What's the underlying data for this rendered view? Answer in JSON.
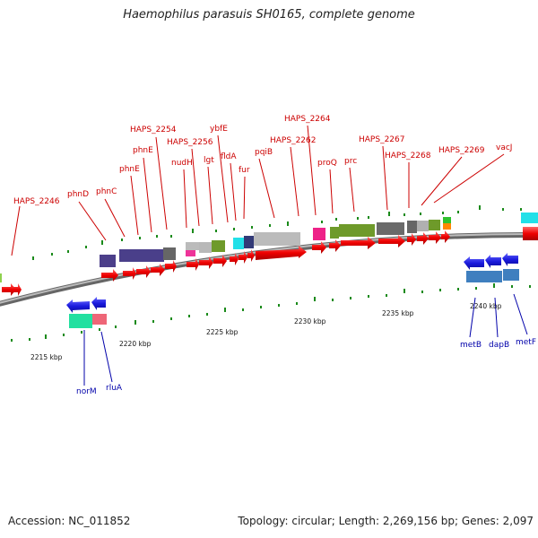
{
  "header": {
    "title": "Haemophilus parasuis SH0165, complete genome"
  },
  "footer": {
    "accession": "Accession: NC_011852",
    "topology": "Topology: circular; Length: 2,269,156 bp; Genes: 2,097"
  },
  "scale_labels": [
    "2215 kbp",
    "2220 kbp",
    "2225 kbp",
    "2230 kbp",
    "2235 kbp",
    "2240 kbp"
  ],
  "top_gene_labels": [
    "HAPS_2246",
    "phnD",
    "phnC",
    "phnE",
    "phnE",
    "HAPS_2254",
    "nudH",
    "HAPS_2256",
    "lgt",
    "ybfE",
    "fldA",
    "fur",
    "pqiB",
    "HAPS_2262",
    "HAPS_2264",
    "proQ",
    "prc",
    "HAPS_2267",
    "HAPS_2268",
    "HAPS_2269",
    "vacJ"
  ],
  "bottom_gene_labels": [
    "norM",
    "rluA",
    "metB",
    "dapB",
    "metF"
  ],
  "colors": {
    "top_label": "#cc0000",
    "bottom_label": "#0000aa",
    "forward_arrow": "#ee0000",
    "reverse_arrow": "#1a1add",
    "backbone": "#888888",
    "tick": "#1a8a1a"
  }
}
